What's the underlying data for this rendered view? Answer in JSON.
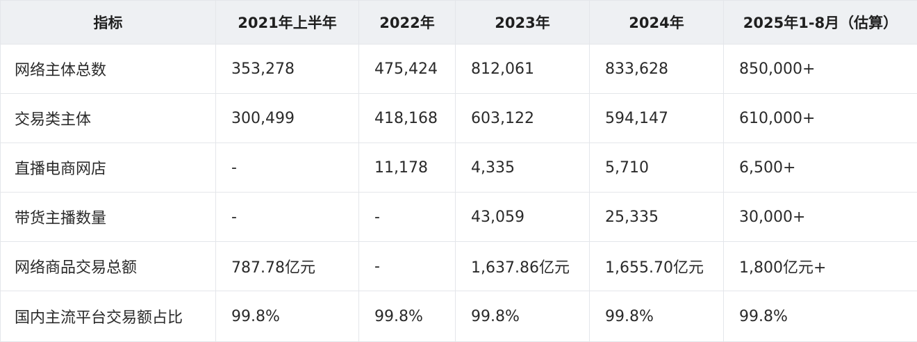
{
  "table": {
    "headers": [
      "指标",
      "2021年上半年",
      "2022年",
      "2023年",
      "2024年",
      "2025年1-8月（估算）"
    ],
    "rows": [
      [
        "网络主体总数",
        "353,278",
        "475,424",
        "812,061",
        "833,628",
        "850,000+"
      ],
      [
        "交易类主体",
        "300,499",
        "418,168",
        "603,122",
        "594,147",
        "610,000+"
      ],
      [
        "直播电商网店",
        "-",
        "11,178",
        "4,335",
        "5,710",
        "6,500+"
      ],
      [
        "带货主播数量",
        "-",
        "-",
        "43,059",
        "25,335",
        "30,000+"
      ],
      [
        "网络商品交易总额",
        "787.78亿元",
        "-",
        "1,637.86亿元",
        "1,655.70亿元",
        "1,800亿元+"
      ],
      [
        "国内主流平台交易额占比",
        "99.8%",
        "99.8%",
        "99.8%",
        "99.8%",
        "99.8%"
      ]
    ]
  }
}
